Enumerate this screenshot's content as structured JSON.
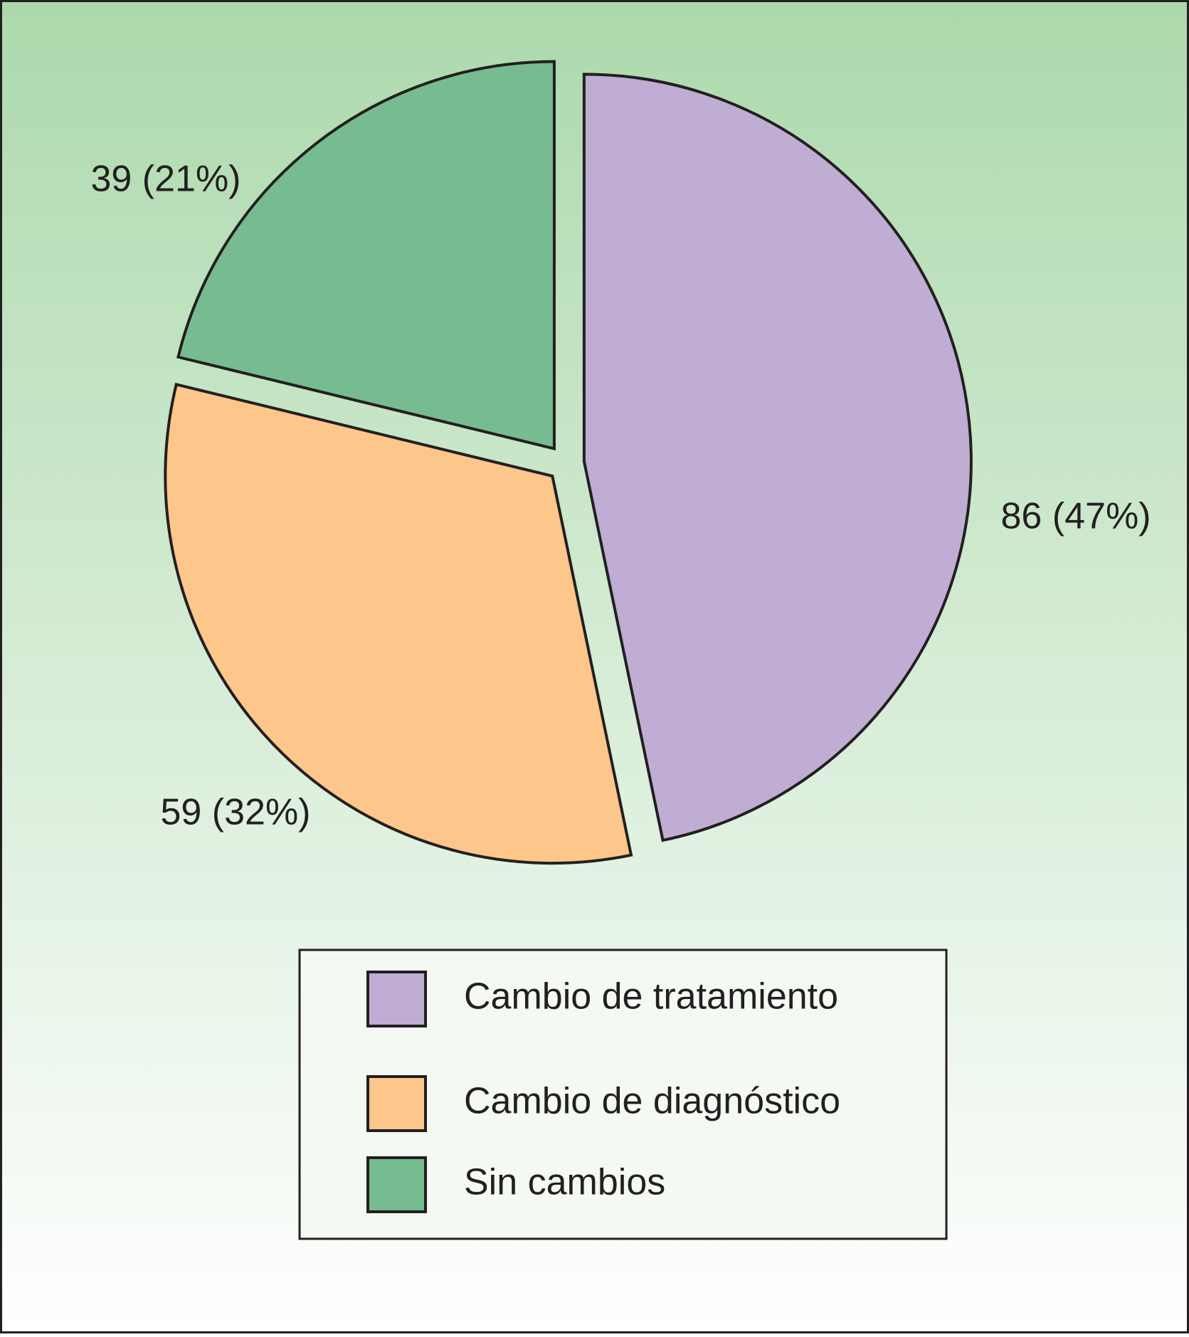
{
  "chart_data": {
    "type": "pie",
    "categories": [
      "Cambio de tratamiento",
      "Cambio de diagnóstico",
      "Sin cambios"
    ],
    "values": [
      86,
      59,
      39
    ],
    "value_labels": [
      "86 (47%)",
      "59 (32%)",
      "39 (21%)"
    ],
    "colors": [
      "#bfadd4",
      "#fdc68a",
      "#77bc90"
    ],
    "legend": "bottom"
  }
}
